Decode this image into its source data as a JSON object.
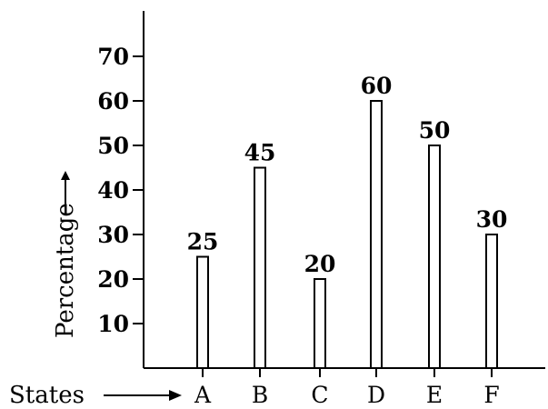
{
  "chart_data": {
    "type": "bar",
    "title": "",
    "xlabel": "States",
    "ylabel": "Percentage",
    "categories": [
      "A",
      "B",
      "C",
      "D",
      "E",
      "F"
    ],
    "values": [
      25,
      45,
      20,
      60,
      50,
      30
    ],
    "data_labels": [
      "25",
      "45",
      "20",
      "60",
      "50",
      "30"
    ],
    "yticks": [
      10,
      20,
      30,
      40,
      50,
      60,
      70
    ],
    "ylim": [
      0,
      70
    ],
    "grid": false,
    "legend": "none",
    "bar_fill": "#ffffff",
    "bar_stroke": "#000000",
    "axis_color": "#000000"
  }
}
